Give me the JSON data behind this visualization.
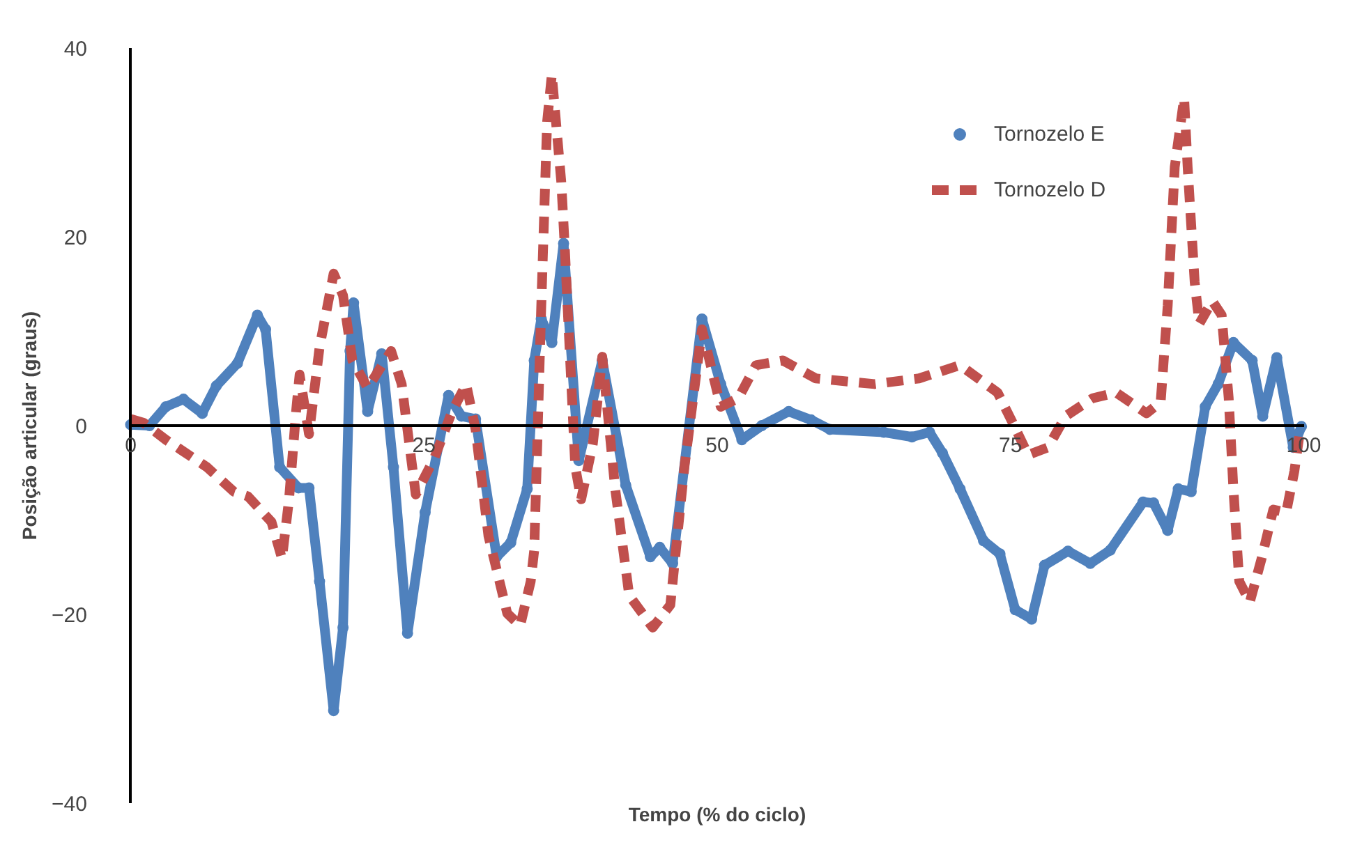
{
  "chart_data": {
    "type": "line",
    "xlabel": "Tempo (% do ciclo)",
    "ylabel": "Posição articular (graus)",
    "xlim": [
      0,
      100
    ],
    "ylim": [
      -40,
      40
    ],
    "xticks": [
      0,
      25,
      50,
      75,
      100
    ],
    "yticks": [
      -40,
      -20,
      0,
      20,
      40
    ],
    "grid": false,
    "legend": "top right",
    "series": [
      {
        "name": "Tornozelo E",
        "color": "#4f81bd",
        "marker": "circle",
        "line_style": "solid",
        "x": [
          0,
          1.6,
          3,
          4.5,
          6.1,
          7.3,
          9.1,
          10.8,
          11.5,
          12.7,
          14.3,
          15.2,
          16.1,
          17.3,
          18.1,
          18.7,
          19,
          20.2,
          21.4,
          22.4,
          23.6,
          25.1,
          27.1,
          28.2,
          29.4,
          31.2,
          32.4,
          33.8,
          34.4,
          35,
          35.9,
          36.9,
          38.2,
          40.2,
          42.2,
          44.3,
          45.1,
          46.2,
          48.7,
          50.3,
          52.1,
          53.8,
          56.1,
          58,
          59.6,
          64.2,
          66.6,
          68.1,
          69.2,
          70.7,
          72.7,
          74.1,
          75.4,
          76.8,
          77.9,
          79.9,
          81.8,
          83.5,
          86.3,
          87.2,
          88.4,
          89.3,
          90.4,
          91.6,
          92.7,
          94,
          95.6,
          96.5,
          97.7,
          99.1,
          99.8
        ],
        "values": [
          0.1,
          0,
          2,
          2.8,
          1.3,
          4.2,
          6.6,
          11.7,
          10.2,
          -4.4,
          -6.6,
          -6.6,
          -16.5,
          -30.2,
          -21.4,
          7.9,
          13,
          1.5,
          7.6,
          -4.4,
          -22,
          -9.2,
          3.2,
          1,
          0.7,
          -13.9,
          -12.4,
          -6.7,
          6.9,
          11.3,
          8.8,
          19.3,
          -3.7,
          6.9,
          -6.3,
          -13.9,
          -12.9,
          -14.6,
          11.3,
          4.4,
          -1.5,
          0,
          1.5,
          0.6,
          -0.4,
          -0.7,
          -1.2,
          -0.7,
          -2.9,
          -6.7,
          -12.2,
          -13.6,
          -19.5,
          -20.5,
          -14.8,
          -13.3,
          -14.6,
          -13.2,
          -8.1,
          -8.2,
          -11.1,
          -6.7,
          -7,
          2,
          4.4,
          8.8,
          6.9,
          1,
          7.2,
          -2.3,
          -0.1
        ]
      },
      {
        "name": "Tornozelo D",
        "color": "#c0504d",
        "marker": "none",
        "line_style": "dashed",
        "x": [
          0,
          1.1,
          3,
          6.5,
          8.8,
          10,
          12,
          12.9,
          13.5,
          14.1,
          14.4,
          15.2,
          16.1,
          17.3,
          18.1,
          18.9,
          20.2,
          22.2,
          23.1,
          24.3,
          25.9,
          27.4,
          28.6,
          29.4,
          30.5,
          32.1,
          33.2,
          34.1,
          34.4,
          35,
          35.5,
          35.9,
          36.7,
          37,
          37.9,
          38.4,
          39.4,
          40.2,
          41.3,
          42.5,
          44.5,
          46,
          47.2,
          48.7,
          50.3,
          51.8,
          53.3,
          55.6,
          58.4,
          63.4,
          67.2,
          70.7,
          73.9,
          75.3,
          76.5,
          78.2,
          79.7,
          82,
          84,
          86.6,
          87.8,
          88.4,
          89,
          89.8,
          90.1,
          90.7,
          91.1,
          92.2,
          93,
          93.6,
          94,
          94.5,
          95.4,
          96.4,
          97.4,
          98.5,
          99.2,
          99.7
        ],
        "values": [
          0.7,
          0.3,
          -1.5,
          -4.4,
          -7,
          -7.5,
          -10.2,
          -14.1,
          -7.8,
          1.5,
          5.4,
          -0.9,
          8.3,
          16.1,
          13.8,
          6.9,
          4,
          7.9,
          4.4,
          -7.3,
          -3.4,
          1.5,
          4.4,
          -0.4,
          -11.7,
          -19.9,
          -21.2,
          -16.5,
          -13.2,
          12.7,
          32.2,
          37.2,
          25.9,
          19,
          -4.4,
          -7.8,
          -1.9,
          7.3,
          -6.7,
          -18,
          -21.4,
          -19,
          -4.4,
          10.2,
          2,
          2.9,
          6.4,
          6.9,
          5,
          4.4,
          5,
          6.4,
          3.5,
          0,
          -3.1,
          -2.3,
          1,
          2.9,
          3.5,
          1.3,
          2.5,
          12.7,
          27.4,
          34.7,
          27.4,
          15.2,
          10.8,
          13.2,
          11.7,
          2.9,
          -6.7,
          -16.5,
          -18.7,
          -14.1,
          -8.9,
          -9.2,
          -4.8,
          -0.4
        ]
      }
    ]
  }
}
